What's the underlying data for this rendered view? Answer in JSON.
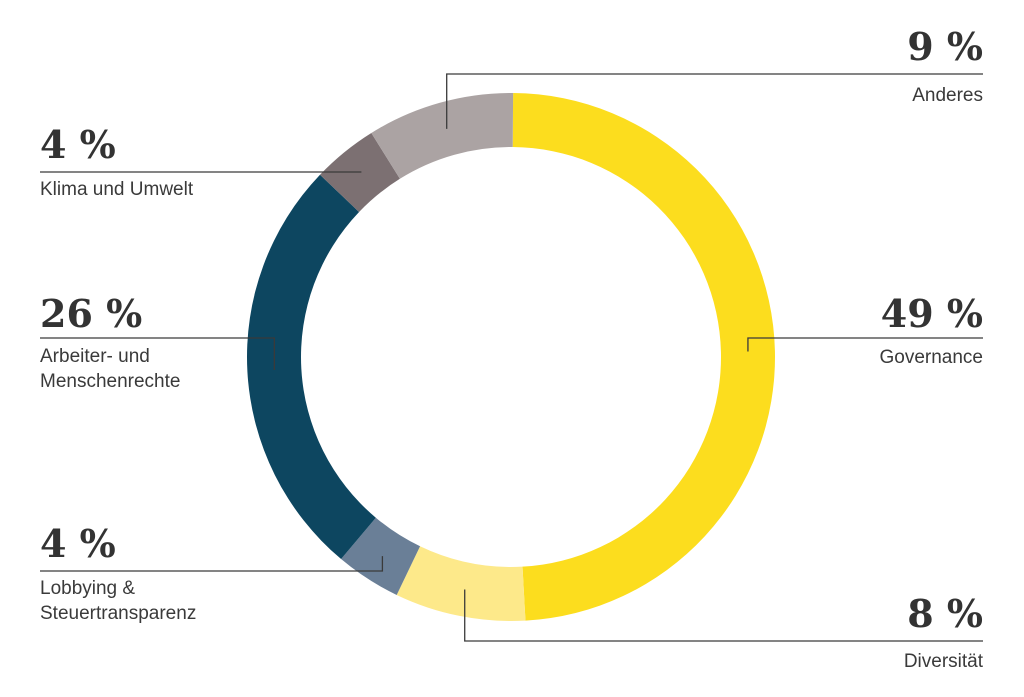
{
  "chart_data": {
    "type": "pie",
    "variant": "donut",
    "title": "",
    "legend": "none",
    "segments": [
      {
        "name": "Governance",
        "value": 49,
        "value_label": "49 %",
        "label_lines": [
          "Governance"
        ],
        "color": "#FCDD1E"
      },
      {
        "name": "Diversität",
        "value": 8,
        "value_label": "8 %",
        "label_lines": [
          "Diversität"
        ],
        "color": "#FDE98A"
      },
      {
        "name": "Lobbying & Steuertransparenz",
        "value": 4,
        "value_label": "4 %",
        "label_lines": [
          "Lobbying &",
          "Steuertransparenz"
        ],
        "color": "#6A7F97"
      },
      {
        "name": "Arbeiter- und Menschenrechte",
        "value": 26,
        "value_label": "26 %",
        "label_lines": [
          "Arbeiter- und",
          "Menschenrechte"
        ],
        "color": "#0D4660"
      },
      {
        "name": "Klima und Umwelt",
        "value": 4,
        "value_label": "4 %",
        "label_lines": [
          "Klima und Umwelt"
        ],
        "color": "#7C7072"
      },
      {
        "name": "Anderes",
        "value": 9,
        "value_label": "9 %",
        "label_lines": [
          "Anderes"
        ],
        "color": "#ABA3A3"
      }
    ]
  }
}
